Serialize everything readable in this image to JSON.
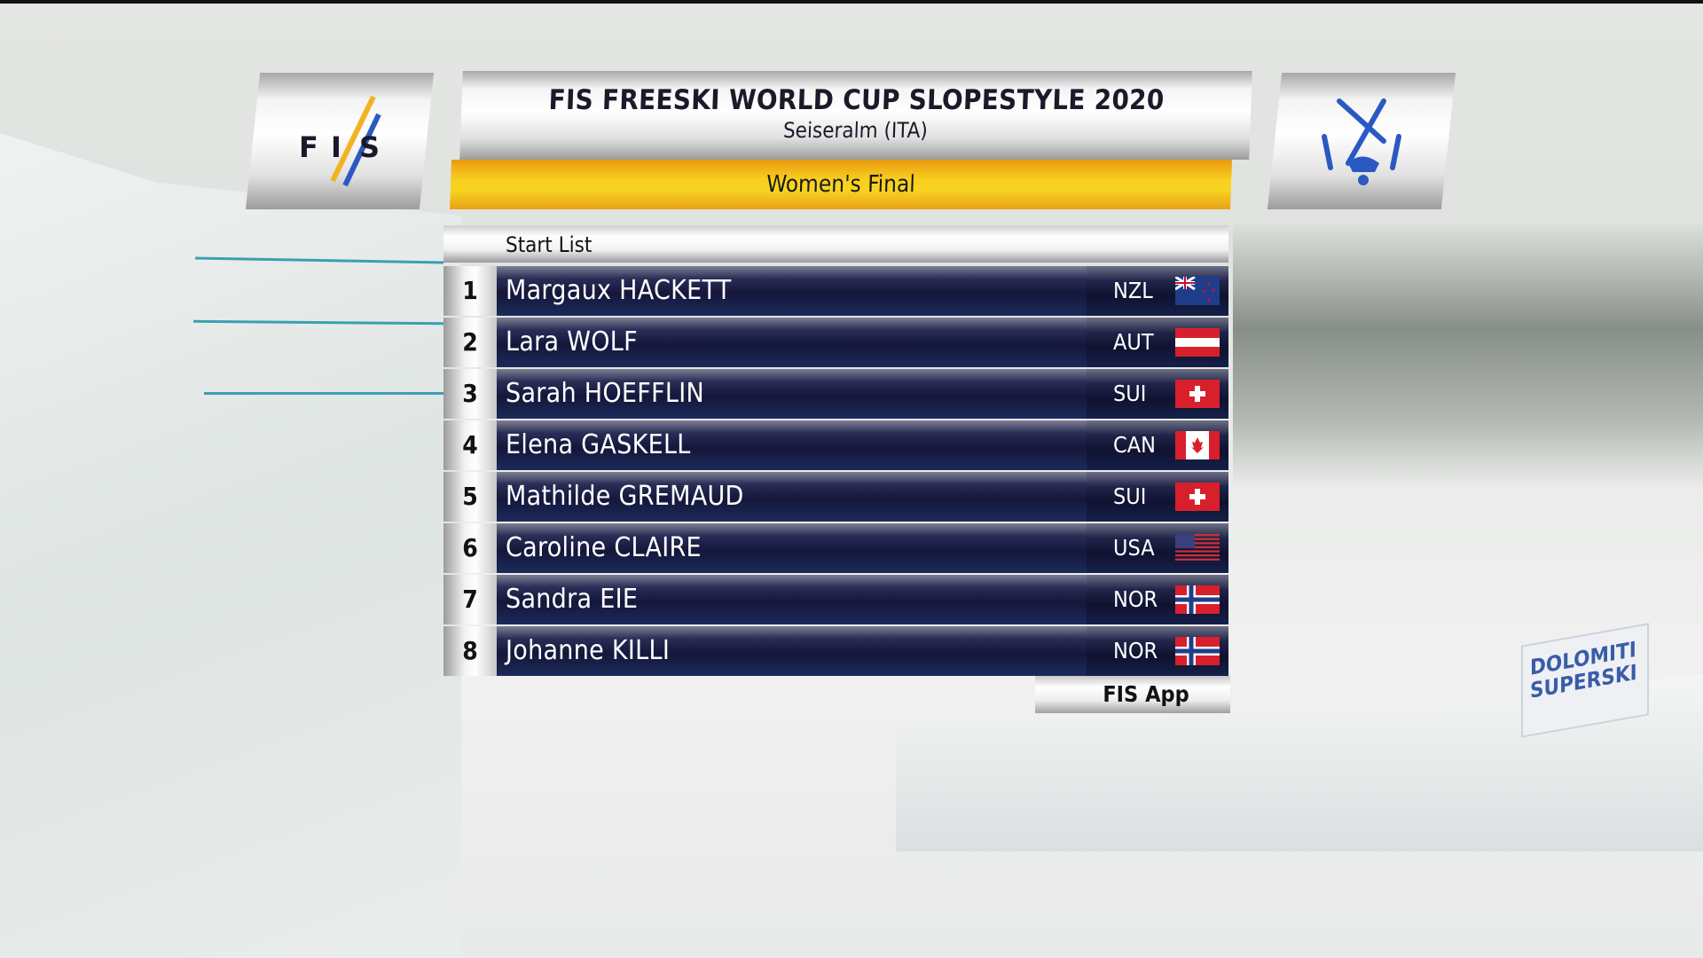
{
  "event": {
    "title": "FIS FREESKI WORLD CUP SLOPESTYLE 2020",
    "location": "Seiseralm  (ITA)",
    "round": "Women's Final",
    "list_label": "Start List",
    "footer_label": "FIS App",
    "logo_left": "FIS",
    "logo_right": "freestyle-skiing-pictogram"
  },
  "colors": {
    "accent_yellow": "#f8cf1e",
    "row_navy": "#14173a",
    "logo_blue": "#2b59c3"
  },
  "start_list": [
    {
      "bib": "1",
      "name": "Margaux HACKETT",
      "nation": "NZL",
      "flag": "nzl"
    },
    {
      "bib": "2",
      "name": "Lara WOLF",
      "nation": "AUT",
      "flag": "aut"
    },
    {
      "bib": "3",
      "name": "Sarah HOEFFLIN",
      "nation": "SUI",
      "flag": "sui"
    },
    {
      "bib": "4",
      "name": "Elena GASKELL",
      "nation": "CAN",
      "flag": "can"
    },
    {
      "bib": "5",
      "name": "Mathilde GREMAUD",
      "nation": "SUI",
      "flag": "sui"
    },
    {
      "bib": "6",
      "name": "Caroline CLAIRE",
      "nation": "USA",
      "flag": "usa"
    },
    {
      "bib": "7",
      "name": "Sandra EIE",
      "nation": "NOR",
      "flag": "nor"
    },
    {
      "bib": "8",
      "name": "Johanne KILLI",
      "nation": "NOR",
      "flag": "nor"
    }
  ],
  "scene": {
    "banner_text": "DOLOMITI SUPERSKI"
  }
}
